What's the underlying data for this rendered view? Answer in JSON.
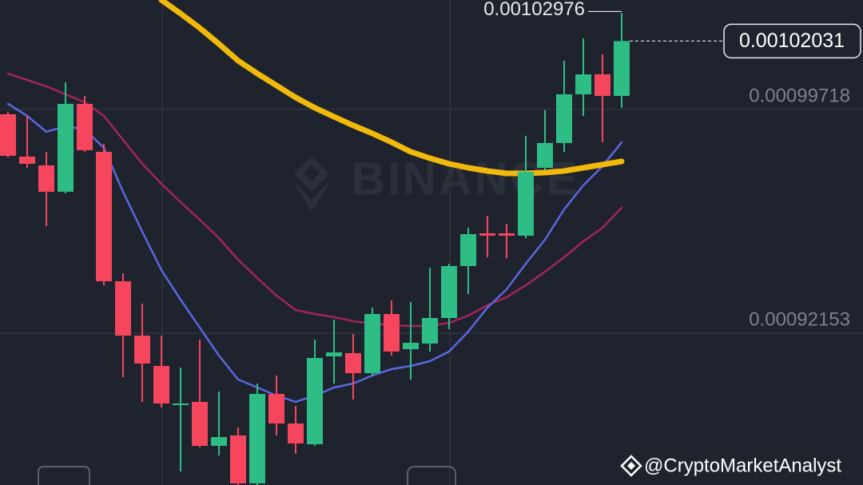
{
  "chart_data": {
    "type": "candlestick",
    "ylim": [
      0.0008702,
      0.0010342
    ],
    "yticks": [
      0.00099718,
      0.00092153
    ],
    "grid": true,
    "up_color": "#2ebd85",
    "down_color": "#f6465d",
    "open": [
      0.00099556,
      0.00098124,
      0.00097827,
      0.00096936,
      0.00099908,
      0.00098287,
      0.0009391,
      0.00092072,
      0.00091046,
      0.00089722,
      0.0008983,
      0.00088344,
      0.00088695,
      0.00087074,
      0.000901,
      0.000891,
      0.00088398,
      0.0009137,
      0.00091478,
      0.00090803,
      0.00092802,
      0.00091613,
      0.00091802,
      0.00092667,
      0.00094423,
      0.00095531,
      0.00095531,
      0.0009545,
      0.00097746,
      0.00098584,
      0.00100232,
      0.00100907,
      0.00100178
    ],
    "high": [
      0.00099637,
      0.00099502,
      0.00098287,
      0.00100637,
      0.00100178,
      0.00098557,
      0.0009418,
      0.00093153,
      0.00092072,
      0.00090992,
      0.00091937,
      0.00090181,
      0.00088965,
      0.00090451,
      0.00090722,
      0.00089695,
      0.00091937,
      0.00092613,
      0.00092127,
      0.00093018,
      0.00093261,
      0.00093207,
      0.00094369,
      0.00094504,
      0.0009572,
      0.00096125,
      0.00095855,
      0.00098827,
      0.00099692,
      0.00101367,
      0.00102123,
      0.00101583,
      0.00102976
    ],
    "low": [
      0.00098097,
      0.00097746,
      0.00095774,
      0.00096882,
      0.00098287,
      0.00093775,
      0.00090667,
      0.0008983,
      0.00089641,
      0.00087479,
      0.0008829,
      0.0008802,
      0.0008702,
      0.0008702,
      0.00088695,
      0.00088074,
      0.00088344,
      0.00090451,
      0.00089911,
      0.00090722,
      0.00091397,
      0.00090586,
      0.00091532,
      0.00092289,
      0.00093477,
      0.0009472,
      0.00094693,
      0.00095369,
      0.00097665,
      0.00098287,
      0.00099502,
      0.00098611,
      0.00099773
    ],
    "close": [
      0.00098151,
      0.00097881,
      0.00096936,
      0.00099908,
      0.00098341,
      0.0009391,
      0.00092072,
      0.00091127,
      0.00089776,
      0.00089776,
      0.00088344,
      0.00088641,
      0.00087074,
      0.000901,
      0.000891,
      0.00088425,
      0.00091316,
      0.00091505,
      0.00090803,
      0.00092802,
      0.00091532,
      0.00091829,
      0.00092667,
      0.00094423,
      0.00095504,
      0.0009545,
      0.0009545,
      0.00097611,
      0.00098584,
      0.00100232,
      0.00100907,
      0.00100178,
      0.00102031
    ],
    "overlays": [
      {
        "color": "#a3245c",
        "values": [
          0.00100934,
          0.00100718,
          0.00100502,
          0.00100232,
          0.00099962,
          0.00099502,
          0.00098692,
          0.00097881,
          0.00097206,
          0.00096584,
          0.0009599,
          0.00095369,
          0.00094639,
          0.00094018,
          0.00093423,
          0.00092937,
          0.00092802,
          0.00092694,
          0.00092559,
          0.00092478,
          0.00092424,
          0.00092397,
          0.00092397,
          0.00092505,
          0.00092748,
          0.00093099,
          0.00093369,
          0.00093775,
          0.00094234,
          0.0009472,
          0.00095261,
          0.0009572,
          0.00096395
        ]
      },
      {
        "color": "#5a67e0",
        "values": [
          0.00099908,
          0.00099502,
          0.00098962,
          0.00099151,
          0.00099043,
          0.00098422,
          0.00096936,
          0.00095585,
          0.00094288,
          0.00093288,
          0.00092343,
          0.00091397,
          0.00090586,
          0.00090316,
          0.00090046,
          0.0008983,
          0.00090046,
          0.00090316,
          0.00090451,
          0.00090722,
          0.00090938,
          0.00091046,
          0.00091208,
          0.00091532,
          0.00092208,
          0.00093018,
          0.0009364,
          0.00094504,
          0.00095315,
          0.00096341,
          0.00097152,
          0.000978,
          0.00098611
        ]
      },
      {
        "color": "#f0b90b",
        "values": [
          null,
          null,
          null,
          null,
          null,
          null,
          null,
          null,
          0.0010342,
          0.00102961,
          0.00102474,
          0.00101934,
          0.00101367,
          0.00100934,
          0.00100529,
          0.00100124,
          0.00099773,
          0.00099475,
          0.00099178,
          0.00098908,
          0.00098611,
          0.00098287,
          0.0009807,
          0.00097881,
          0.00097746,
          0.00097638,
          0.00097557,
          0.00097557,
          0.00097584,
          0.00097638,
          0.00097746,
          0.00097854,
          0.00097962
        ]
      }
    ],
    "watermark": "BINANCE",
    "handle": "@CryptoMarketAnalyst"
  }
}
